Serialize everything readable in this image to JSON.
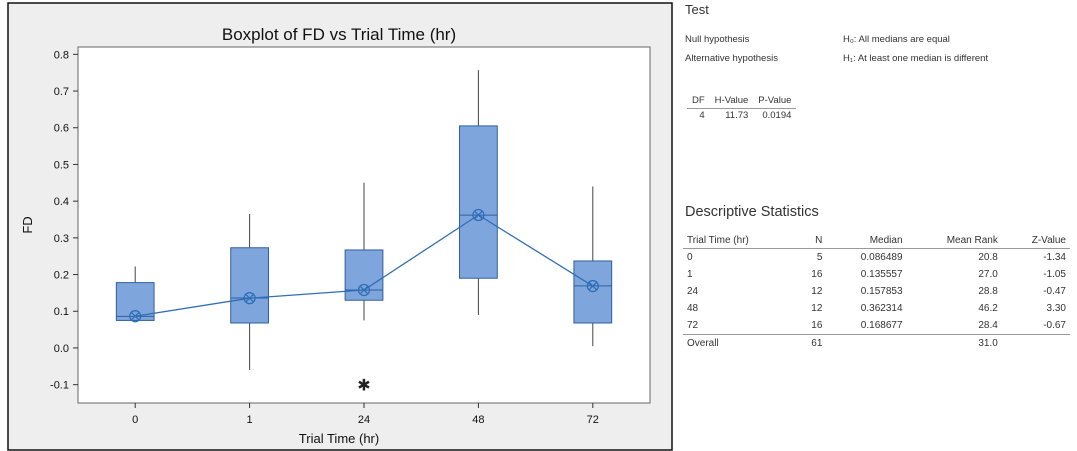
{
  "chart_data": {
    "type": "boxplot",
    "title": "Boxplot of FD vs Trial Time (hr)",
    "xlabel": "Trial Time (hr)",
    "ylabel": "FD",
    "ylim": [
      -0.15,
      0.82
    ],
    "yticks": [
      "-0.1",
      "0.0",
      "0.1",
      "0.2",
      "0.3",
      "0.4",
      "0.5",
      "0.6",
      "0.7",
      "0.8"
    ],
    "ytick_values": [
      -0.1,
      0.0,
      0.1,
      0.2,
      0.3,
      0.4,
      0.5,
      0.6,
      0.7,
      0.8
    ],
    "categories": [
      "0",
      "1",
      "24",
      "48",
      "72"
    ],
    "boxes": [
      {
        "whisker_low": 0.075,
        "q1": 0.075,
        "median": 0.086,
        "q3": 0.178,
        "whisker_high": 0.222,
        "mean_marker": 0.086489,
        "outliers": []
      },
      {
        "whisker_low": -0.06,
        "q1": 0.068,
        "median": 0.136,
        "q3": 0.273,
        "whisker_high": 0.365,
        "mean_marker": 0.135557,
        "outliers": []
      },
      {
        "whisker_low": 0.075,
        "q1": 0.13,
        "median": 0.158,
        "q3": 0.267,
        "whisker_high": 0.45,
        "mean_marker": 0.157853,
        "outliers": [
          -0.1
        ]
      },
      {
        "whisker_low": 0.09,
        "q1": 0.19,
        "median": 0.362,
        "q3": 0.605,
        "whisker_high": 0.757,
        "mean_marker": 0.362314,
        "outliers": []
      },
      {
        "whisker_low": 0.005,
        "q1": 0.068,
        "median": 0.169,
        "q3": 0.237,
        "whisker_high": 0.44,
        "mean_marker": 0.168677,
        "outliers": []
      }
    ],
    "colors": {
      "box_fill": "#7ea6dc",
      "box_stroke": "#2f5f9e",
      "connect_line": "#2f6fb8",
      "plot_bg": "#ffffff"
    }
  },
  "stats": {
    "test_heading": "Test",
    "null_label": "Null hypothesis",
    "null_value": "H₀: All medians are equal",
    "alt_label": "Alternative hypothesis",
    "alt_value": "H₁: At least one median is different",
    "htest_headers": [
      "DF",
      "H-Value",
      "P-Value"
    ],
    "htest_row": [
      "4",
      "11.73",
      "0.0194"
    ],
    "desc_heading": "Descriptive Statistics",
    "desc_headers": [
      "Trial Time (hr)",
      "N",
      "Median",
      "Mean Rank",
      "Z-Value"
    ],
    "desc_rows": [
      [
        "0",
        "5",
        "0.086489",
        "20.8",
        "-1.34"
      ],
      [
        "1",
        "16",
        "0.135557",
        "27.0",
        "-1.05"
      ],
      [
        "24",
        "12",
        "0.157853",
        "28.8",
        "-0.47"
      ],
      [
        "48",
        "12",
        "0.362314",
        "46.2",
        "3.30"
      ],
      [
        "72",
        "16",
        "0.168677",
        "28.4",
        "-0.67"
      ]
    ],
    "overall_row": [
      "Overall",
      "61",
      "",
      "31.0",
      ""
    ]
  }
}
